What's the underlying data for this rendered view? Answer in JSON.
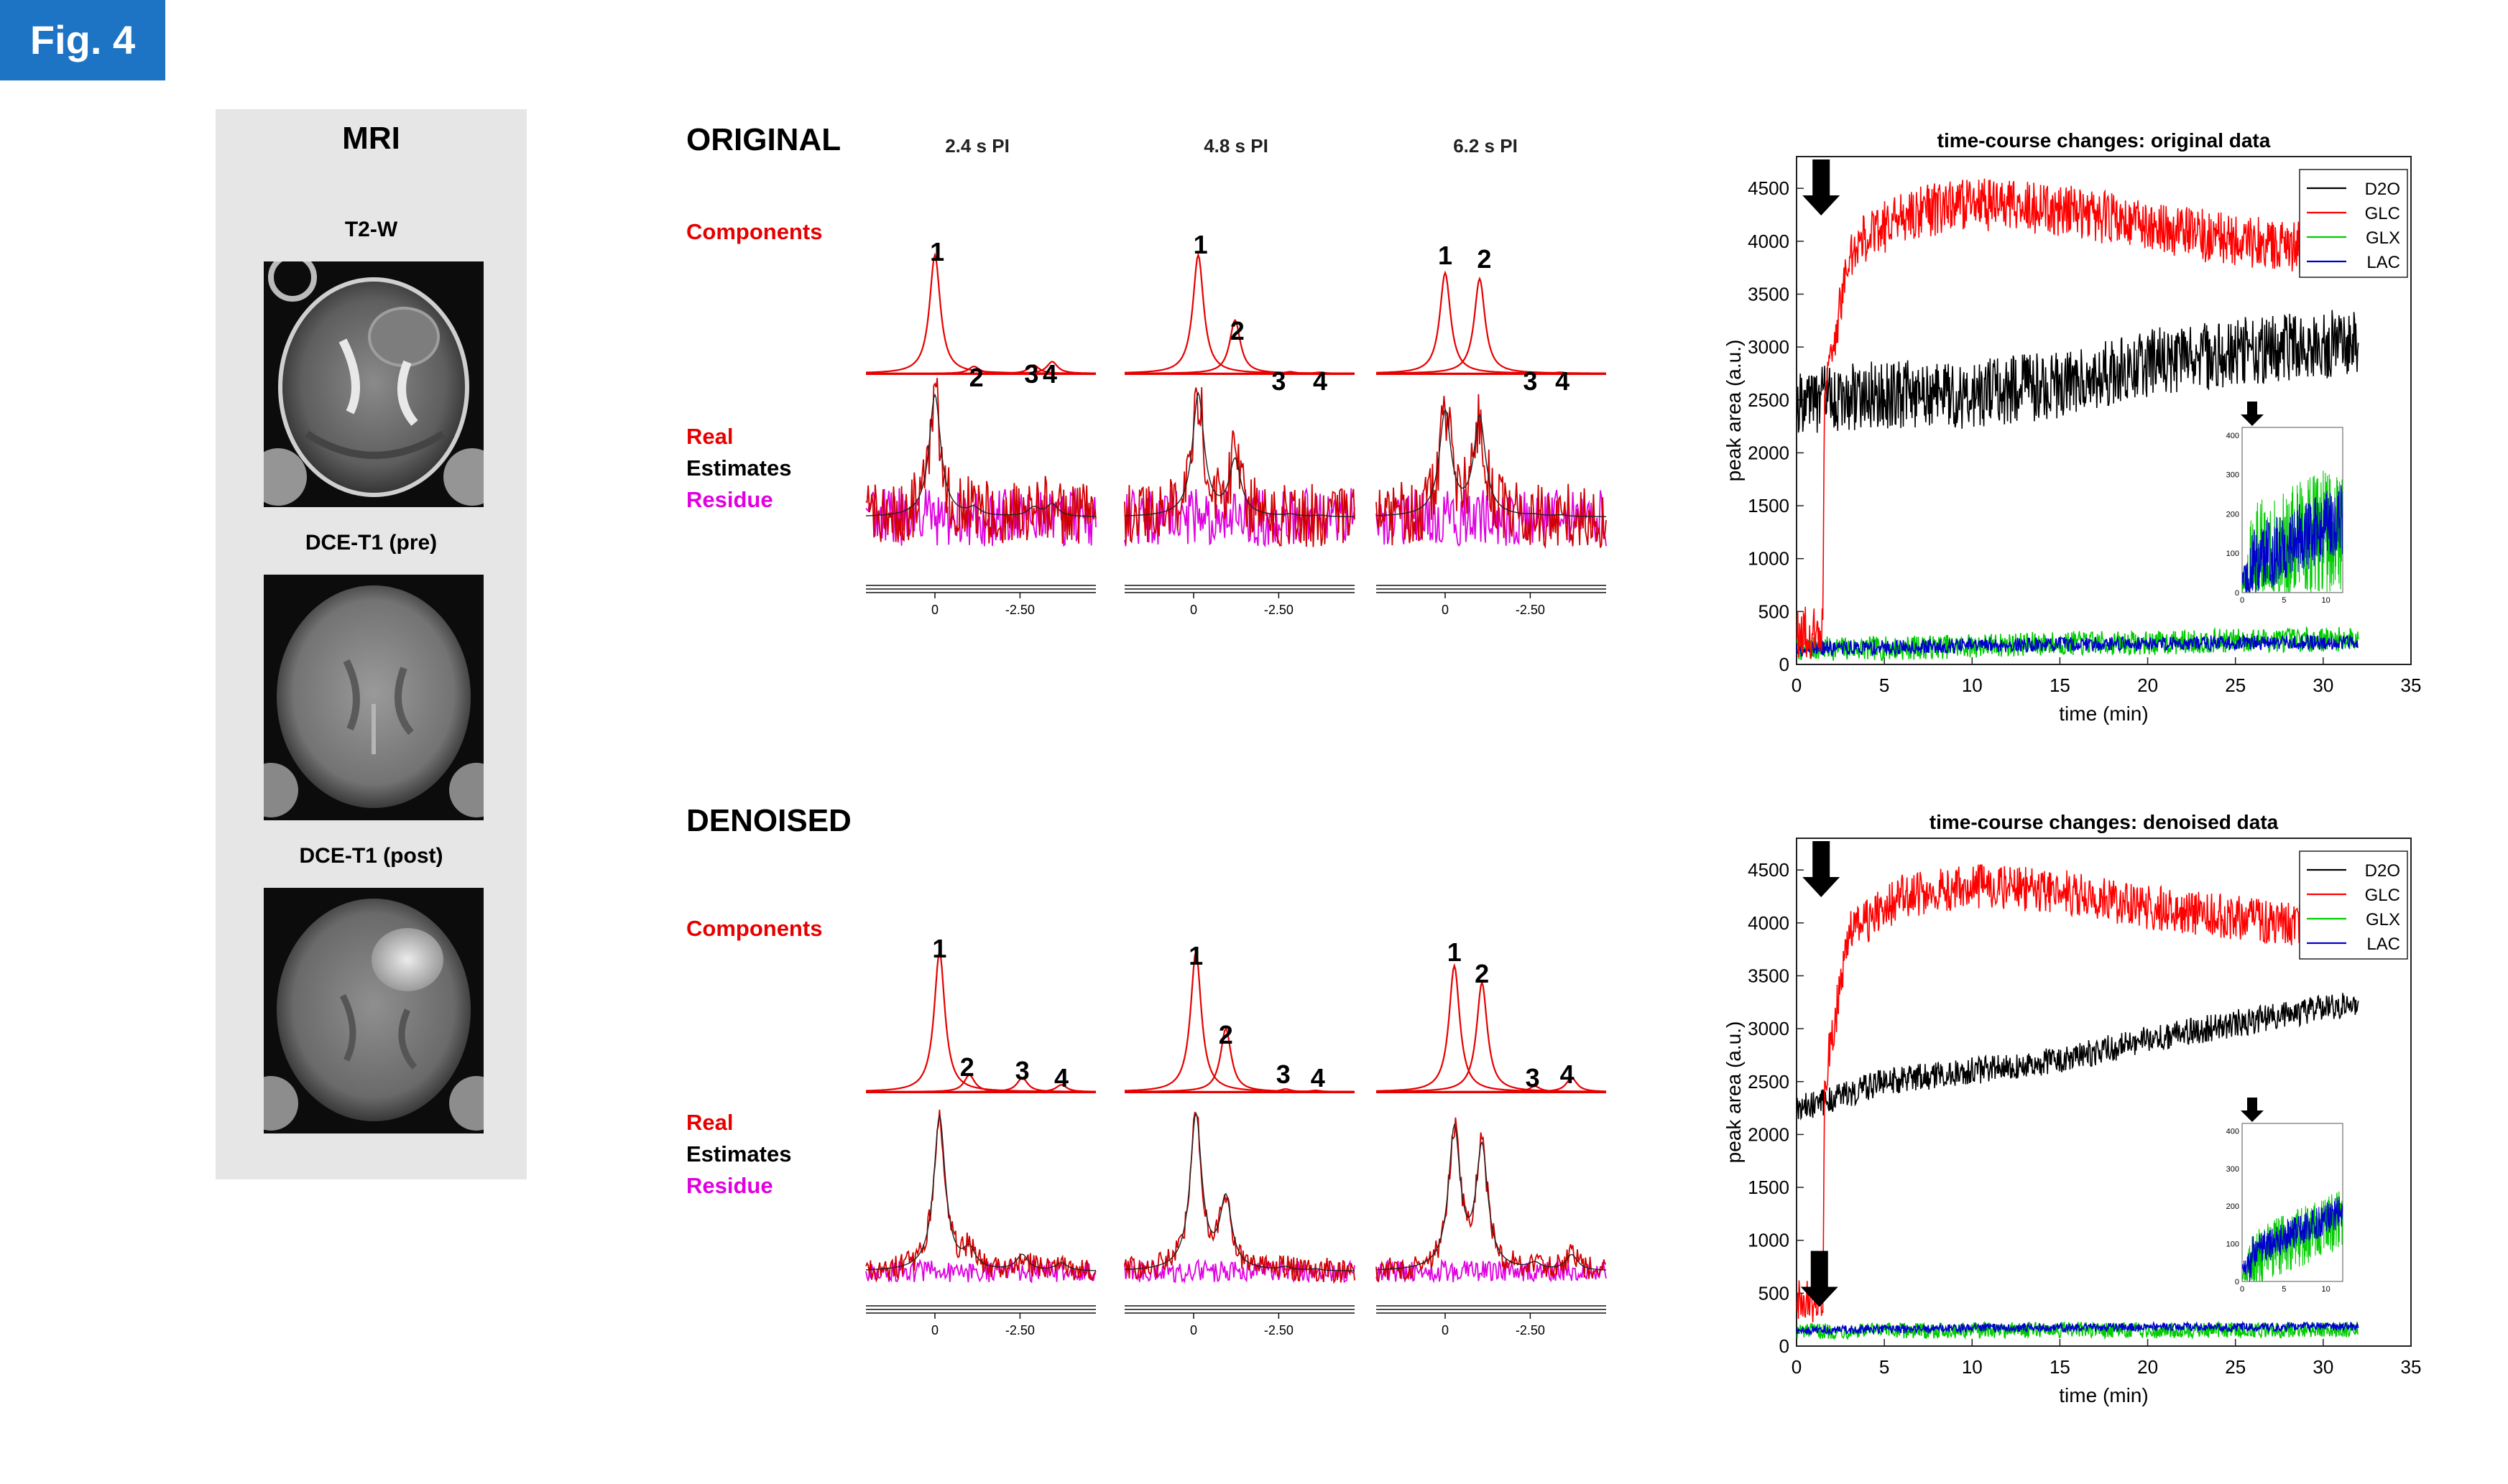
{
  "figure_tag": "Fig. 4",
  "mri": {
    "title": "MRI",
    "images": [
      {
        "label": "T2-W"
      },
      {
        "label": "DCE-T1 (pre)"
      },
      {
        "label": "DCE-T1 (post)"
      }
    ]
  },
  "sections": {
    "original": {
      "title": "ORIGINAL",
      "components_label": "Components",
      "real_label": "Real",
      "estimates_label": "Estimates",
      "residue_label": "Residue"
    },
    "denoised": {
      "title": "DENOISED",
      "components_label": "Components",
      "real_label": "Real",
      "estimates_label": "Estimates",
      "residue_label": "Residue"
    }
  },
  "spectra": {
    "column_headers": [
      "2.4 s PI",
      "4.8 s PI",
      "6.2 s PI"
    ],
    "peak_numbers": [
      "1",
      "2",
      "3",
      "4"
    ],
    "axis_ticks": [
      "0",
      "-2.50"
    ]
  },
  "colors": {
    "D2O": "#000000",
    "GLC": "#ff0000",
    "GLX": "#00cc00",
    "LAC": "#0000cc",
    "components": "#e60000",
    "residue": "#e000e0",
    "fig_tag": "#1d73c4"
  },
  "chart_data": [
    {
      "type": "line",
      "title": "time-course changes: original data",
      "xlabel": "time (min)",
      "ylabel": "peak area (a.u.)",
      "xlim": [
        0,
        35
      ],
      "ylim": [
        0,
        4800
      ],
      "xticks": [
        0,
        5,
        10,
        15,
        20,
        25,
        30,
        35
      ],
      "yticks": [
        0,
        500,
        1000,
        1500,
        2000,
        2500,
        3000,
        3500,
        4000,
        4500
      ],
      "legend": [
        "D2O",
        "GLC",
        "GLX",
        "LAC"
      ],
      "legend_position": "top-right",
      "noise_level": "high",
      "series": [
        {
          "name": "D2O",
          "x": [
            0,
            1.5,
            5,
            10,
            15,
            20,
            25,
            32
          ],
          "values": [
            2500,
            2500,
            2550,
            2550,
            2650,
            2850,
            2950,
            3050
          ]
        },
        {
          "name": "GLC",
          "x": [
            0,
            1.5,
            1.6,
            3,
            6,
            10,
            15,
            20,
            25,
            32
          ],
          "values": [
            300,
            300,
            2500,
            3900,
            4250,
            4350,
            4300,
            4150,
            4000,
            3900
          ]
        },
        {
          "name": "GLX",
          "x": [
            0,
            5,
            10,
            15,
            20,
            25,
            32
          ],
          "values": [
            150,
            150,
            175,
            200,
            200,
            225,
            240
          ]
        },
        {
          "name": "LAC",
          "x": [
            0,
            5,
            10,
            15,
            20,
            25,
            32
          ],
          "values": [
            150,
            160,
            180,
            190,
            200,
            205,
            210
          ]
        }
      ],
      "inset": {
        "xticks": [
          0,
          5,
          10
        ],
        "yticks": [
          0,
          100,
          200,
          300,
          400
        ]
      }
    },
    {
      "type": "line",
      "title": "time-course changes: denoised data",
      "xlabel": "time (min)",
      "ylabel": "peak area (a.u.)",
      "xlim": [
        0,
        35
      ],
      "ylim": [
        0,
        4800
      ],
      "xticks": [
        0,
        5,
        10,
        15,
        20,
        25,
        30,
        35
      ],
      "yticks": [
        0,
        500,
        1000,
        1500,
        2000,
        2500,
        3000,
        3500,
        4000,
        4500
      ],
      "legend": [
        "D2O",
        "GLC",
        "GLX",
        "LAC"
      ],
      "legend_position": "top-right",
      "noise_level": "low",
      "series": [
        {
          "name": "D2O",
          "x": [
            0,
            1.5,
            5,
            10,
            15,
            20,
            25,
            32
          ],
          "values": [
            2250,
            2300,
            2500,
            2600,
            2700,
            2900,
            3050,
            3250
          ]
        },
        {
          "name": "GLC",
          "x": [
            0,
            1.5,
            1.6,
            3,
            6,
            10,
            15,
            20,
            25,
            32
          ],
          "values": [
            450,
            400,
            2500,
            3900,
            4250,
            4350,
            4300,
            4150,
            4050,
            3900
          ]
        },
        {
          "name": "GLX",
          "x": [
            0,
            5,
            10,
            15,
            20,
            25,
            32
          ],
          "values": [
            140,
            145,
            150,
            155,
            150,
            150,
            160
          ]
        },
        {
          "name": "LAC",
          "x": [
            0,
            5,
            10,
            15,
            20,
            25,
            32
          ],
          "values": [
            150,
            160,
            170,
            175,
            180,
            180,
            185
          ]
        }
      ],
      "inset": {
        "xticks": [
          0,
          5,
          10
        ],
        "yticks": [
          0,
          100,
          200,
          300,
          400
        ]
      }
    }
  ]
}
